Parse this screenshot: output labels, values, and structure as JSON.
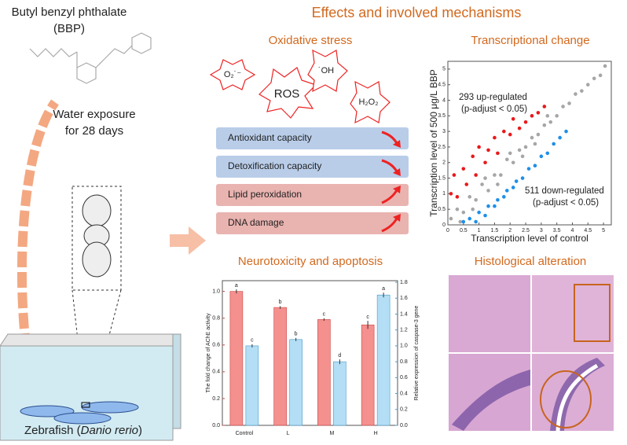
{
  "left": {
    "compound": "Butyl benzyl phthalate",
    "abbrev": "(BBP)",
    "exposure": "Water exposure",
    "duration": "for 28 days",
    "organism": "Zebrafish (",
    "species": "Danio rerio",
    "close": ")"
  },
  "header": "Effects and involved mechanisms",
  "oxidative": {
    "title": "Oxidative stress",
    "species": [
      "O₂˙⁻",
      "ROS",
      "˙OH",
      "H₂O₂"
    ],
    "items": [
      "Antioxidant capacity",
      "Detoxification capacity",
      "Lipid peroxidation",
      "DNA damage"
    ]
  },
  "transcriptional": {
    "title": "Transcriptional change"
  },
  "neuro": {
    "title": "Neurotoxicity and apoptosis"
  },
  "histology": {
    "title": "Histological alteration"
  },
  "chart_data": [
    {
      "type": "bar",
      "categories": [
        "Control",
        "L",
        "M",
        "H"
      ],
      "y_label": "The fold change of AChE activity",
      "y2_label": "Relative expression of caspase-3 gene",
      "ylim": [
        0,
        1.08
      ],
      "yticks": [
        {
          "value": 0,
          "label": "0.0"
        },
        0.2,
        0.4,
        0.6,
        0.8,
        {
          "value": 1,
          "label": "1.0"
        }
      ],
      "y2lim": [
        0,
        1.82
      ],
      "y2ticks": [
        {
          "value": 0,
          "label": "0.0"
        },
        0.2,
        0.4,
        0.6,
        0.8,
        {
          "value": 1,
          "label": "1.0"
        },
        1.2,
        1.4,
        1.6,
        1.8
      ],
      "series": [
        {
          "color": "#f4908e",
          "values": [
            1.0,
            0.88,
            0.79,
            0.75
          ],
          "errors": [
            0.015,
            0.01,
            0.01,
            0.03
          ],
          "letters": [
            "a",
            "b",
            "c",
            "c"
          ]
        },
        {
          "color": "#b3def5",
          "axis": "y2",
          "values": [
            1.0,
            1.08,
            0.8,
            1.64
          ],
          "errors": [
            0.02,
            0.02,
            0.03,
            0.03
          ],
          "letters": [
            "c",
            "b",
            "d",
            "a"
          ]
        }
      ]
    },
    {
      "type": "scatter",
      "x_label": "Transcription level of control",
      "y_label": "Transcription level of 500 μg/L BBP",
      "annotations": [
        "293 up-regulated",
        "(p-adjust < 0.05)",
        "511 down-regulated",
        "(p-adjust < 0.05)"
      ],
      "xlim": [
        0,
        5.25
      ],
      "ylim": [
        0,
        5.25
      ],
      "xticks": [
        0,
        0.5,
        1,
        1.5,
        2,
        2.5,
        3,
        3.5,
        4,
        4.5,
        5
      ],
      "yticks": [
        0,
        0.5,
        1,
        1.5,
        2,
        2.5,
        3,
        3.5,
        4,
        4.5,
        5
      ],
      "series": [
        {
          "color": "#a6a6a6",
          "x": [
            0.1,
            0.3,
            0.5,
            0.7,
            0.9,
            1.1,
            1.3,
            1.5,
            1.7,
            1.9,
            2.1,
            2.3,
            2.5,
            2.7,
            2.9,
            3.1,
            3.3,
            3.5,
            3.7,
            3.9,
            4.1,
            4.3,
            4.5,
            4.7,
            4.9,
            5.05,
            0.4,
            0.8,
            1.2,
            1.6,
            2.0,
            2.4,
            2.8,
            3.2
          ],
          "values": [
            0.2,
            0.5,
            0.4,
            0.9,
            0.8,
            1.3,
            1.1,
            1.6,
            1.6,
            2.1,
            2.0,
            2.4,
            2.5,
            2.8,
            2.9,
            3.2,
            3.3,
            3.5,
            3.8,
            3.9,
            4.2,
            4.3,
            4.5,
            4.7,
            4.8,
            5.1,
            0.1,
            0.5,
            1.5,
            1.3,
            2.3,
            2.2,
            2.6,
            3.5
          ]
        },
        {
          "color": "#e8191b",
          "x": [
            0.1,
            0.2,
            0.3,
            0.5,
            0.6,
            0.8,
            0.9,
            1.0,
            1.2,
            1.3,
            1.5,
            1.6,
            1.8,
            2.0,
            2.1,
            2.3,
            2.5,
            2.7,
            2.9,
            3.1
          ],
          "values": [
            1.0,
            1.6,
            0.9,
            1.8,
            1.3,
            2.2,
            1.6,
            2.5,
            2.0,
            2.4,
            2.8,
            2.3,
            3.0,
            2.9,
            3.4,
            3.1,
            3.3,
            3.5,
            3.6,
            3.8
          ]
        },
        {
          "color": "#1e8fe8",
          "x": [
            0.5,
            0.7,
            0.9,
            1.0,
            1.2,
            1.3,
            1.5,
            1.6,
            1.8,
            1.9,
            2.1,
            2.2,
            2.4,
            2.6,
            2.8,
            3.0,
            3.2,
            3.4,
            3.6,
            3.8
          ],
          "values": [
            0.1,
            0.2,
            0.1,
            0.4,
            0.3,
            0.6,
            0.6,
            0.8,
            0.9,
            1.1,
            1.2,
            1.4,
            1.5,
            1.8,
            1.9,
            2.2,
            2.3,
            2.6,
            2.8,
            3.0
          ]
        }
      ]
    }
  ]
}
